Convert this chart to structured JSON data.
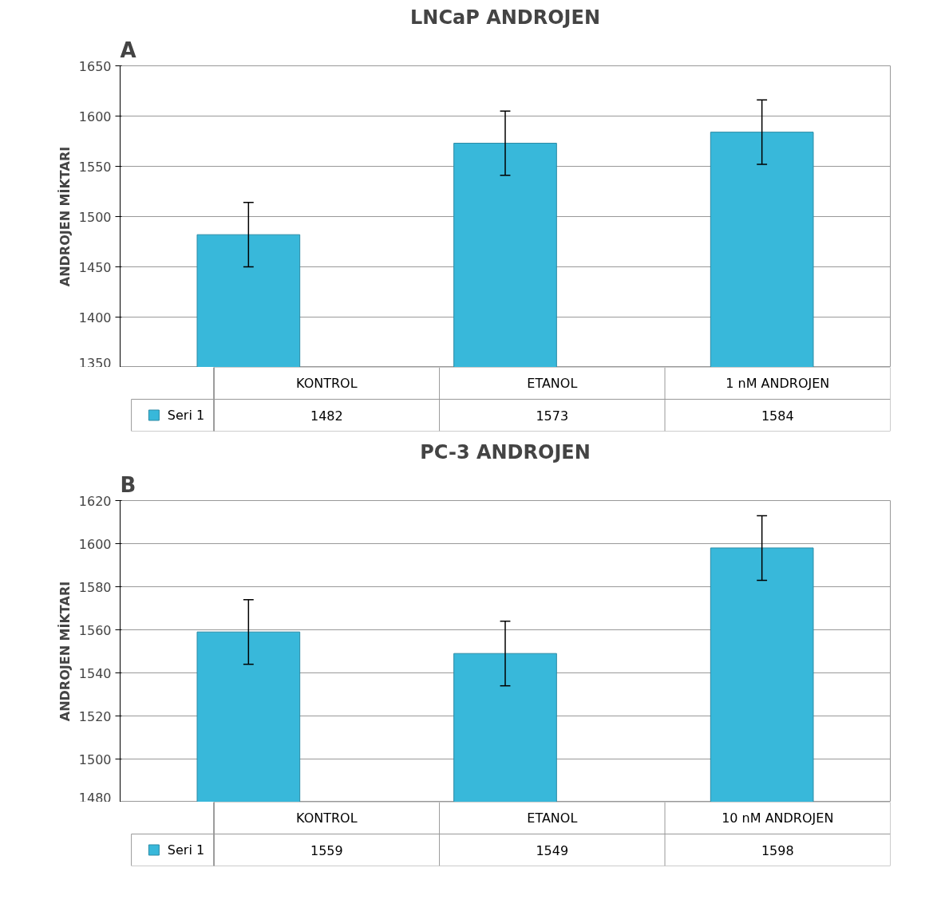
{
  "chart_data": [
    {
      "type": "bar",
      "title": "LNCaP ANDROJEN",
      "ylabel": "ANDROJEN MİKTARI",
      "annotations": [
        "A"
      ],
      "categories": [
        "KONTROL",
        "ETANOL",
        "1 nM ANDROJEN"
      ],
      "series": [
        {
          "name": "Seri 1",
          "color": "#38b8da",
          "values": [
            1482,
            1573,
            1584
          ],
          "errors": [
            32,
            32,
            32
          ]
        }
      ],
      "ylim": [
        1350,
        1650
      ],
      "yticks": [
        1350,
        1400,
        1450,
        1500,
        1550,
        1600,
        1650
      ],
      "grid": "y",
      "data_labels": true,
      "legend": "bottom left"
    },
    {
      "type": "bar",
      "title": "PC-3 ANDROJEN",
      "ylabel": "ANDROJEN MİKTARI",
      "annotations": [
        "B"
      ],
      "categories": [
        "KONTROL",
        "ETANOL",
        "10 nM ANDROJEN"
      ],
      "series": [
        {
          "name": "Seri 1",
          "color": "#38b8da",
          "values": [
            1559,
            1549,
            1598
          ],
          "errors": [
            15,
            15,
            15
          ]
        }
      ],
      "ylim": [
        1480,
        1620
      ],
      "yticks": [
        1480,
        1500,
        1520,
        1540,
        1560,
        1580,
        1600,
        1620
      ],
      "grid": "y",
      "data_labels": true,
      "legend": "bottom left"
    }
  ]
}
